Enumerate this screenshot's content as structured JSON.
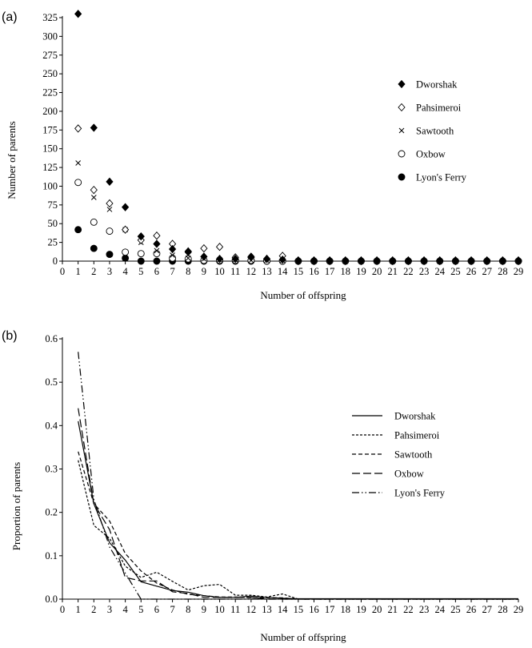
{
  "chart_data": [
    {
      "panel_label": "(a)",
      "type": "scatter",
      "xlabel": "Number of offspring",
      "ylabel": "Number of parents",
      "xlim": [
        0,
        29
      ],
      "ylim": [
        0,
        325
      ],
      "x_ticks": [
        0,
        1,
        2,
        3,
        4,
        5,
        6,
        7,
        8,
        9,
        10,
        11,
        12,
        13,
        14,
        15,
        16,
        17,
        18,
        19,
        20,
        21,
        22,
        23,
        24,
        25,
        26,
        27,
        28,
        29
      ],
      "y_ticks": [
        0,
        25,
        50,
        75,
        100,
        125,
        150,
        175,
        200,
        225,
        250,
        275,
        300,
        325
      ],
      "grid": false,
      "legend_position": "right",
      "x": [
        1,
        2,
        3,
        4,
        5,
        6,
        7,
        8,
        9,
        10,
        11,
        12,
        13,
        14,
        15,
        16,
        17,
        18,
        19,
        20,
        21,
        22,
        23,
        24,
        25,
        26,
        27,
        28,
        29
      ],
      "series": [
        {
          "name": "Dworshak",
          "marker": "filled-diamond",
          "values": [
            330,
            178,
            106,
            72,
            33,
            23,
            16,
            13,
            6,
            3,
            3,
            6,
            3,
            2,
            1,
            1,
            1,
            1,
            1,
            1,
            1,
            1,
            1,
            1,
            1,
            1,
            1,
            1,
            1
          ]
        },
        {
          "name": "Pahsimeroi",
          "marker": "open-diamond",
          "values": [
            177,
            95,
            77,
            42,
            28,
            34,
            23,
            12,
            17,
            19,
            5,
            5,
            3,
            7,
            0,
            0,
            0,
            0,
            0,
            0,
            0,
            0,
            0,
            0,
            0,
            0,
            0,
            0,
            0
          ]
        },
        {
          "name": "Sawtooth",
          "marker": "cross",
          "values": [
            131,
            85,
            69,
            42,
            25,
            14,
            8,
            4,
            3,
            2,
            2,
            1,
            1,
            1,
            0,
            0,
            0,
            0,
            0,
            0,
            0,
            0,
            0,
            0,
            0,
            0,
            0,
            0,
            0
          ]
        },
        {
          "name": "Oxbow",
          "marker": "open-circle",
          "values": [
            105,
            52,
            40,
            12,
            10,
            10,
            4,
            3,
            1,
            1,
            1,
            1,
            0,
            0,
            0,
            0,
            0,
            0,
            0,
            0,
            0,
            0,
            0,
            0,
            0,
            0,
            0,
            0,
            0
          ]
        },
        {
          "name": "Lyon's Ferry",
          "marker": "filled-circle",
          "values": [
            42,
            17,
            9,
            4,
            0,
            0,
            0,
            0,
            0,
            0,
            0,
            0,
            0,
            0,
            0,
            0,
            0,
            0,
            0,
            0,
            0,
            0,
            0,
            0,
            0,
            0,
            0,
            0,
            0
          ]
        }
      ]
    },
    {
      "panel_label": "(b)",
      "type": "line",
      "xlabel": "Number of offspring",
      "ylabel": "Proportion of parents",
      "xlim": [
        0,
        29
      ],
      "ylim": [
        0,
        0.6
      ],
      "x_ticks": [
        0,
        1,
        2,
        3,
        4,
        5,
        6,
        7,
        8,
        9,
        10,
        11,
        12,
        13,
        14,
        15,
        16,
        17,
        18,
        19,
        20,
        21,
        22,
        23,
        24,
        25,
        26,
        27,
        28,
        29
      ],
      "y_ticks": [
        "0.0",
        "0.1",
        "0.2",
        "0.3",
        "0.4",
        "0.5",
        "0.6"
      ],
      "grid": false,
      "legend_position": "right",
      "x": [
        1,
        2,
        3,
        4,
        5,
        6,
        7,
        8,
        9,
        10,
        11,
        12,
        13,
        14,
        15,
        16,
        17,
        18,
        19,
        20,
        21,
        22,
        23,
        24,
        25,
        26,
        27,
        28,
        29
      ],
      "series": [
        {
          "name": "Dworshak",
          "dash": "solid",
          "values": [
            0.41,
            0.22,
            0.13,
            0.09,
            0.04,
            0.03,
            0.02,
            0.016,
            0.008,
            0.004,
            0.004,
            0.007,
            0.004,
            0.002,
            0.001,
            0.001,
            0.001,
            0.001,
            0.001,
            0.001,
            0.001,
            0.001,
            0.001,
            0.001,
            0.001,
            0.001,
            0.001,
            0.001,
            0.001
          ]
        },
        {
          "name": "Pahsimeroi",
          "dash": "short-dash",
          "values": [
            0.32,
            0.17,
            0.14,
            0.076,
            0.05,
            0.062,
            0.041,
            0.021,
            0.031,
            0.034,
            0.009,
            0.009,
            0.005,
            0.012,
            0,
            0,
            0,
            0,
            0,
            0,
            0,
            0,
            0,
            0,
            0,
            0,
            0,
            0,
            0
          ]
        },
        {
          "name": "Sawtooth",
          "dash": "dash",
          "values": [
            0.34,
            0.22,
            0.18,
            0.105,
            0.065,
            0.037,
            0.021,
            0.011,
            0.008,
            0.005,
            0.005,
            0.003,
            0.003,
            0.003,
            0,
            0,
            0,
            0,
            0,
            0,
            0,
            0,
            0,
            0,
            0,
            0,
            0,
            0,
            0
          ]
        },
        {
          "name": "Oxbow",
          "dash": "long-dash",
          "values": [
            0.44,
            0.22,
            0.16,
            0.05,
            0.042,
            0.042,
            0.017,
            0.013,
            0.004,
            0.004,
            0.004,
            0.004,
            0,
            0,
            0,
            0,
            0,
            0,
            0,
            0,
            0,
            0,
            0,
            0,
            0,
            0,
            0,
            0,
            0
          ]
        },
        {
          "name": "Lyon's Ferry",
          "dash": "dash-dot-dot",
          "values": [
            0.57,
            0.23,
            0.12,
            0.06,
            0,
            0,
            0,
            0,
            0,
            0,
            0,
            0,
            0,
            0,
            0,
            0,
            0,
            0,
            0,
            0,
            0,
            0,
            0,
            0,
            0,
            0,
            0,
            0,
            0
          ]
        }
      ]
    }
  ]
}
